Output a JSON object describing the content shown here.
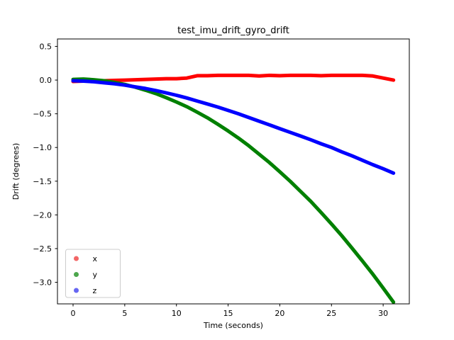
{
  "chart_data": {
    "type": "scatter",
    "title": "test_imu_drift_gyro_drift",
    "xlabel": "Time (seconds)",
    "ylabel": "Drift (degrees)",
    "xlim": [
      -1.51,
      32.53
    ],
    "ylim": [
      -3.32,
      0.61
    ],
    "grid": false,
    "legend_position": "lower left",
    "frame_color": "#000000",
    "background_color": "#ffffff",
    "xticks": {
      "values": [
        0,
        5,
        10,
        15,
        20,
        25,
        30
      ],
      "labels": [
        "0",
        "5",
        "10",
        "15",
        "20",
        "25",
        "30"
      ]
    },
    "yticks": {
      "values": [
        0.5,
        0.0,
        -0.5,
        -1.0,
        -1.5,
        -2.0,
        -2.5,
        -3.0
      ],
      "labels": [
        "0.5",
        "0.0",
        "−0.5",
        "−1.0",
        "−1.5",
        "−2.0",
        "−2.5",
        "−3.0"
      ]
    },
    "x": [
      0,
      1,
      2,
      3,
      4,
      5,
      6,
      7,
      8,
      9,
      10,
      11,
      12,
      13,
      14,
      15,
      16,
      17,
      18,
      19,
      20,
      21,
      22,
      23,
      24,
      25,
      26,
      27,
      28,
      29,
      30,
      31
    ],
    "series": [
      {
        "name": "x",
        "color": "#ff0000",
        "legend_marker_color": "#f26666",
        "values": [
          -0.02,
          -0.015,
          -0.015,
          -0.01,
          -0.005,
          0.0,
          0.005,
          0.01,
          0.015,
          0.02,
          0.02,
          0.03,
          0.065,
          0.065,
          0.07,
          0.07,
          0.07,
          0.07,
          0.06,
          0.07,
          0.065,
          0.07,
          0.07,
          0.07,
          0.065,
          0.07,
          0.07,
          0.07,
          0.07,
          0.06,
          0.03,
          0.0
        ]
      },
      {
        "name": "y",
        "color": "#008000",
        "legend_marker_color": "#4da64d",
        "values": [
          0.01,
          0.015,
          0.005,
          -0.01,
          -0.035,
          -0.065,
          -0.105,
          -0.15,
          -0.2,
          -0.26,
          -0.325,
          -0.395,
          -0.475,
          -0.56,
          -0.655,
          -0.755,
          -0.86,
          -0.975,
          -1.1,
          -1.225,
          -1.36,
          -1.5,
          -1.65,
          -1.8,
          -1.965,
          -2.135,
          -2.31,
          -2.495,
          -2.685,
          -2.88,
          -3.085,
          -3.295
        ]
      },
      {
        "name": "z",
        "color": "#0000ff",
        "legend_marker_color": "#6666f2",
        "values": [
          -0.01,
          -0.015,
          -0.025,
          -0.04,
          -0.055,
          -0.075,
          -0.1,
          -0.125,
          -0.155,
          -0.19,
          -0.225,
          -0.265,
          -0.31,
          -0.355,
          -0.4,
          -0.45,
          -0.5,
          -0.555,
          -0.61,
          -0.665,
          -0.72,
          -0.775,
          -0.83,
          -0.885,
          -0.945,
          -1.0,
          -1.065,
          -1.125,
          -1.19,
          -1.255,
          -1.315,
          -1.38
        ]
      }
    ],
    "marker_size_px": 5
  }
}
